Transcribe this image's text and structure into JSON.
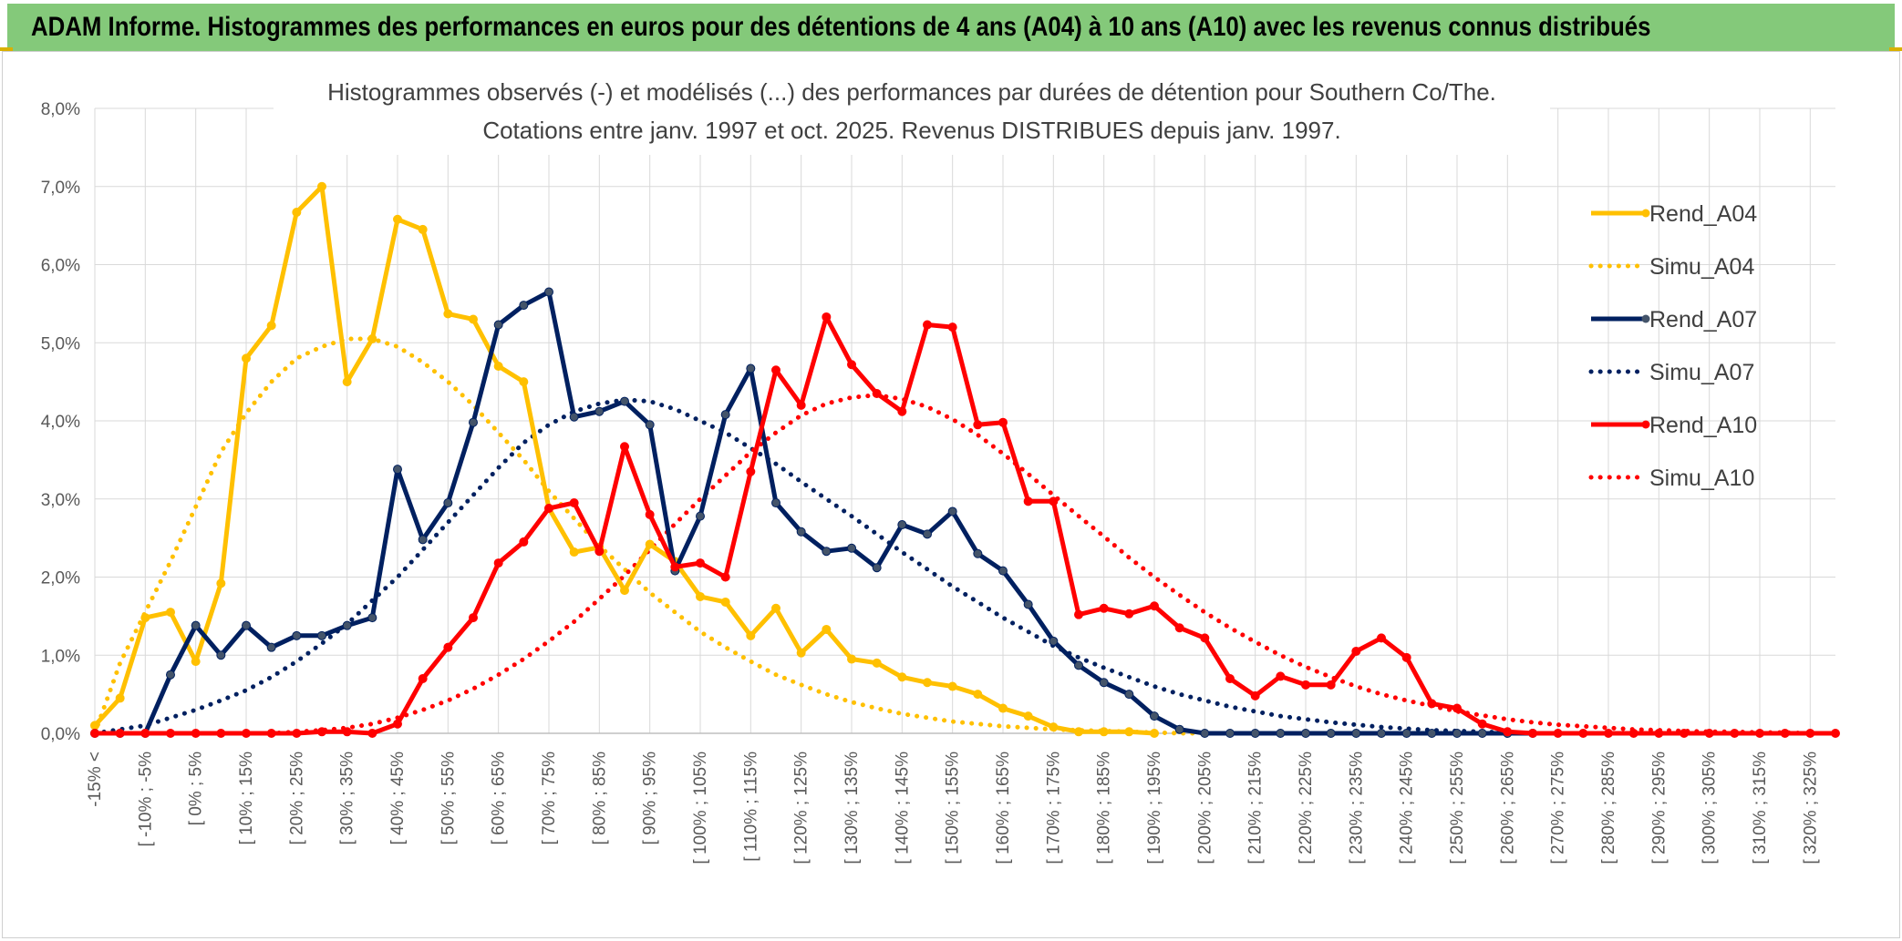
{
  "header": {
    "title": "ADAM Informe. Histogrammes des performances en euros pour des détentions de 4 ans (A04) à 10 ans (A10) avec les revenus connus distribués"
  },
  "chart_data": {
    "type": "line",
    "title_line1": "Histogrammes observés (-) et modélisés (...) des performances par durées de détention pour Southern Co/The.",
    "title_line2": "Cotations entre janv. 1997 et oct. 2025. Revenus DISTRIBUES depuis janv. 1997.",
    "xlabel": "",
    "ylabel": "",
    "ylim": [
      0,
      8
    ],
    "y_ticks": [
      "0,0%",
      "1,0%",
      "2,0%",
      "3,0%",
      "4,0%",
      "5,0%",
      "6,0%",
      "7,0%",
      "8,0%"
    ],
    "x_tick_labels": [
      "-15% <",
      "[ -10% ; -5%",
      "[ 0% ; 5%",
      "[ 10% ; 15%",
      "[ 20% ; 25%",
      "[ 30% ; 35%",
      "[ 40% ; 45%",
      "[ 50% ; 55%",
      "[ 60% ; 65%",
      "[ 70% ; 75%",
      "[ 80% ; 85%",
      "[ 90% ; 95%",
      "[ 100% ; 105%",
      "[ 110% ; 115%",
      "[ 120% ; 125%",
      "[ 130% ; 135%",
      "[ 140% ; 145%",
      "[ 150% ; 155%",
      "[ 160% ; 165%",
      "[ 170% ; 175%",
      "[ 180% ; 185%",
      "[ 190% ; 195%",
      "[ 200% ; 205%",
      "[ 210% ; 215%",
      "[ 220% ; 225%",
      "[ 230% ; 235%",
      "[ 240% ; 245%",
      "[ 250% ; 255%",
      "[ 260% ; 265%",
      "[ 270% ; 275%",
      "[ 280% ; 285%",
      "[ 290% ; 295%",
      "[ 300% ; 305%",
      "[ 310% ; 315%",
      "[ 320% ; 325%"
    ],
    "grid": true,
    "legend_position": "right",
    "series": [
      {
        "name": "Rend_A04",
        "color": "#ffc000",
        "style": "solid",
        "markers": true,
        "values": [
          0.1,
          0.45,
          1.48,
          1.55,
          0.92,
          1.92,
          4.8,
          5.22,
          6.67,
          7.0,
          4.5,
          5.05,
          6.58,
          6.45,
          5.37,
          5.3,
          4.7,
          4.5,
          2.88,
          2.32,
          2.38,
          1.83,
          2.42,
          2.2,
          1.75,
          1.68,
          1.25,
          1.6,
          1.03,
          1.33,
          0.95,
          0.9,
          0.72,
          0.65,
          0.6,
          0.5,
          0.32,
          0.22,
          0.08,
          0.02,
          0.02,
          0.02,
          0.0
        ]
      },
      {
        "name": "Simu_A04",
        "color": "#ffc000",
        "style": "dotted",
        "markers": false,
        "values": [
          0.0,
          0.9,
          1.55,
          2.2,
          2.9,
          3.6,
          4.1,
          4.5,
          4.8,
          4.95,
          5.05,
          5.05,
          4.95,
          4.75,
          4.5,
          4.2,
          3.85,
          3.5,
          3.1,
          2.75,
          2.4,
          2.1,
          1.8,
          1.55,
          1.3,
          1.1,
          0.92,
          0.75,
          0.62,
          0.5,
          0.4,
          0.32,
          0.25,
          0.2,
          0.15,
          0.12,
          0.09,
          0.07,
          0.05,
          0.04,
          0.03,
          0.02,
          0.01,
          0.0,
          0.0,
          0.0,
          0.0,
          0.0,
          0.0,
          0.0,
          0.0,
          0.0,
          0.0,
          0.0,
          0.0,
          0.0,
          0.0,
          0.0,
          0.0,
          0.0,
          0.0,
          0.0,
          0.0,
          0.0,
          0.0,
          0.0,
          0.0,
          0.0,
          0.0,
          0.0
        ]
      },
      {
        "name": "Rend_A07",
        "color": "#002060",
        "style": "solid",
        "markers": true,
        "values": [
          0,
          0,
          0,
          0.75,
          1.38,
          1.0,
          1.38,
          1.1,
          1.25,
          1.25,
          1.38,
          1.48,
          3.38,
          2.48,
          2.95,
          3.98,
          5.23,
          5.48,
          5.65,
          4.05,
          4.12,
          4.25,
          3.95,
          2.08,
          2.78,
          4.08,
          4.67,
          2.95,
          2.58,
          2.33,
          2.37,
          2.12,
          2.67,
          2.55,
          2.84,
          2.3,
          2.08,
          1.65,
          1.18,
          0.87,
          0.65,
          0.5,
          0.22,
          0.05,
          0,
          0,
          0,
          0,
          0,
          0,
          0,
          0,
          0,
          0,
          0,
          0,
          0,
          0
        ]
      },
      {
        "name": "Simu_A07",
        "color": "#002060",
        "style": "dotted",
        "markers": false,
        "values": [
          0.0,
          0.05,
          0.1,
          0.2,
          0.3,
          0.42,
          0.55,
          0.72,
          0.92,
          1.15,
          1.4,
          1.7,
          2.0,
          2.35,
          2.7,
          3.05,
          3.4,
          3.72,
          3.95,
          4.12,
          4.22,
          4.27,
          4.25,
          4.15,
          4.0,
          3.85,
          3.65,
          3.45,
          3.22,
          3.0,
          2.78,
          2.55,
          2.32,
          2.1,
          1.88,
          1.68,
          1.48,
          1.3,
          1.12,
          0.97,
          0.84,
          0.72,
          0.6,
          0.5,
          0.42,
          0.34,
          0.28,
          0.22,
          0.18,
          0.14,
          0.11,
          0.08,
          0.06,
          0.04,
          0.03,
          0.02,
          0.01,
          0.0,
          0.0,
          0.0,
          0.0,
          0.0,
          0.0,
          0.0,
          0.0,
          0.0,
          0.0,
          0.0,
          0.0,
          0.0
        ]
      },
      {
        "name": "Rend_A10",
        "color": "#ff0000",
        "style": "solid",
        "markers": true,
        "values": [
          0,
          0,
          0,
          0,
          0,
          0,
          0,
          0,
          0,
          0.02,
          0.02,
          0.0,
          0.12,
          0.7,
          1.1,
          1.48,
          2.18,
          2.45,
          2.88,
          2.95,
          2.33,
          3.67,
          2.8,
          2.13,
          2.18,
          2.0,
          3.35,
          4.65,
          4.2,
          5.33,
          4.72,
          4.35,
          4.12,
          5.23,
          5.2,
          3.95,
          3.98,
          2.97,
          2.97,
          1.52,
          1.6,
          1.53,
          1.63,
          1.35,
          1.22,
          0.7,
          0.48,
          0.73,
          0.62,
          0.62,
          1.05,
          1.22,
          0.97,
          0.38,
          0.32,
          0.12,
          0.02,
          0,
          0,
          0,
          0,
          0,
          0,
          0,
          0,
          0,
          0,
          0,
          0,
          0
        ]
      },
      {
        "name": "Simu_A10",
        "color": "#ff0000",
        "style": "dotted",
        "markers": false,
        "values": [
          0.0,
          0.0,
          0.0,
          0.0,
          0.0,
          0.0,
          0.0,
          0.0,
          0.02,
          0.04,
          0.07,
          0.12,
          0.2,
          0.3,
          0.42,
          0.57,
          0.75,
          0.95,
          1.18,
          1.43,
          1.72,
          2.02,
          2.35,
          2.68,
          3.0,
          3.3,
          3.6,
          3.85,
          4.07,
          4.22,
          4.3,
          4.33,
          4.28,
          4.18,
          4.02,
          3.82,
          3.58,
          3.32,
          3.05,
          2.78,
          2.52,
          2.25,
          2.0,
          1.77,
          1.55,
          1.35,
          1.17,
          1.0,
          0.85,
          0.72,
          0.6,
          0.5,
          0.42,
          0.35,
          0.28,
          0.23,
          0.18,
          0.14,
          0.11,
          0.09,
          0.07,
          0.05,
          0.04,
          0.03,
          0.02,
          0.02,
          0.01,
          0.01,
          0.0,
          0.0
        ]
      }
    ]
  },
  "legend": {
    "items": [
      {
        "label": "Rend_A04",
        "color": "#ffc000",
        "style": "solid"
      },
      {
        "label": "Simu_A04",
        "color": "#ffc000",
        "style": "dotted"
      },
      {
        "label": "Rend_A07",
        "color": "#002060",
        "style": "solid"
      },
      {
        "label": "Simu_A07",
        "color": "#002060",
        "style": "dotted"
      },
      {
        "label": "Rend_A10",
        "color": "#ff0000",
        "style": "solid"
      },
      {
        "label": "Simu_A10",
        "color": "#ff0000",
        "style": "dotted"
      }
    ]
  }
}
